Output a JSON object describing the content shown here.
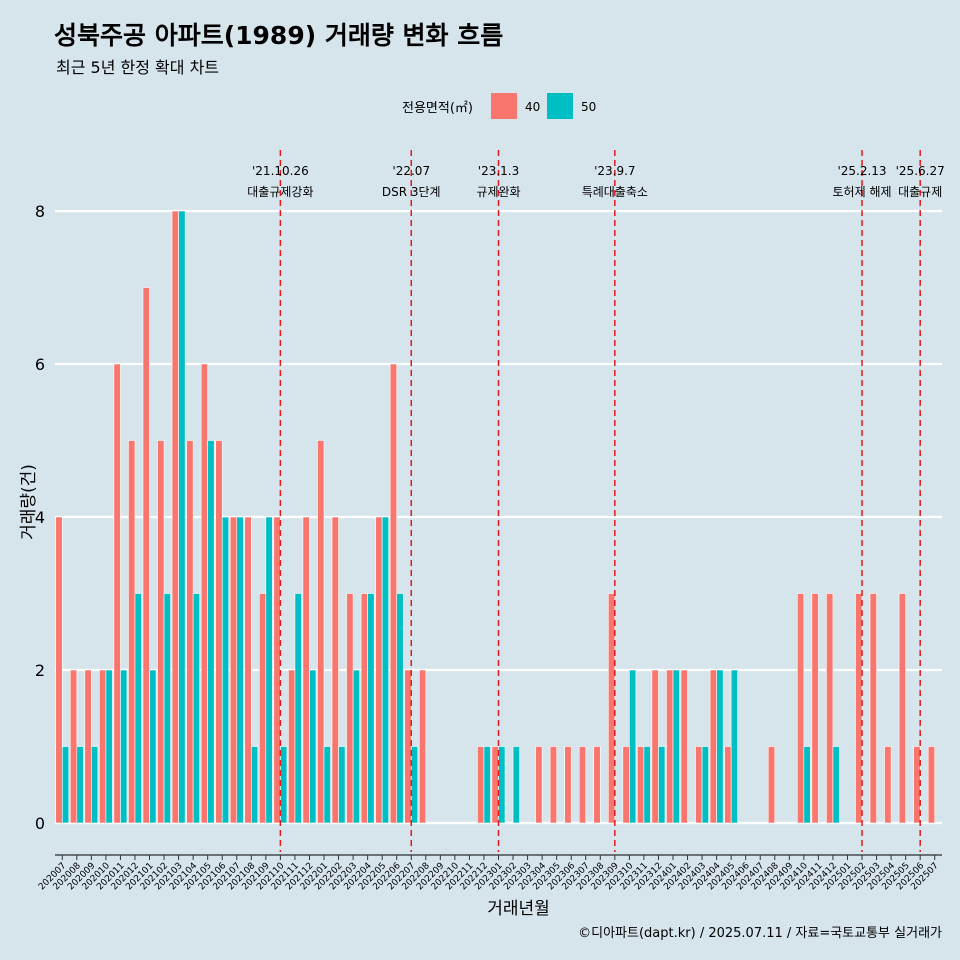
{
  "title": "성북주공 아파트(1989) 거래량 변화 흐름",
  "subtitle": "최근 5년 한정 확대 차트",
  "caption": "©디아파트(dapt.kr) / 2025.07.11 / 자료=국토교통부 실거래가",
  "colors": {
    "s40": "#f8766d",
    "s50": "#00bfc4",
    "vline": "#e31a1c",
    "background": "#d6e4ec",
    "grid": "#ffffff"
  },
  "chart_data": {
    "type": "bar",
    "title": "성북주공 아파트(1989) 거래량 변화 흐름",
    "subtitle": "최근 5년 한정 확대 차트",
    "xlabel": "거래년월",
    "ylabel": "거래량(건)",
    "ylim": [
      0,
      8
    ],
    "yticks": [
      0,
      2,
      4,
      6,
      8
    ],
    "legend": {
      "title": "전용면적(㎡)",
      "position": "top"
    },
    "categories": [
      "202007",
      "202008",
      "202009",
      "202010",
      "202011",
      "202012",
      "202101",
      "202102",
      "202103",
      "202104",
      "202105",
      "202106",
      "202107",
      "202108",
      "202109",
      "202110",
      "202111",
      "202112",
      "202201",
      "202202",
      "202203",
      "202204",
      "202205",
      "202206",
      "202207",
      "202208",
      "202209",
      "202210",
      "202211",
      "202212",
      "202301",
      "202302",
      "202303",
      "202304",
      "202305",
      "202306",
      "202307",
      "202308",
      "202309",
      "202310",
      "202311",
      "202312",
      "202401",
      "202402",
      "202403",
      "202404",
      "202405",
      "202406",
      "202407",
      "202408",
      "202409",
      "202410",
      "202411",
      "202412",
      "202501",
      "202502",
      "202503",
      "202504",
      "202505",
      "202506",
      "202507"
    ],
    "series": [
      {
        "name": "40",
        "values": [
          4,
          2,
          2,
          2,
          6,
          5,
          7,
          5,
          8,
          5,
          6,
          5,
          4,
          4,
          3,
          4,
          2,
          4,
          5,
          4,
          3,
          3,
          4,
          6,
          2,
          2,
          0,
          0,
          0,
          1,
          1,
          0,
          0,
          1,
          1,
          1,
          1,
          1,
          3,
          1,
          1,
          2,
          2,
          2,
          1,
          2,
          1,
          0,
          0,
          1,
          0,
          3,
          3,
          3,
          0,
          3,
          3,
          1,
          3,
          1,
          1
        ]
      },
      {
        "name": "50",
        "values": [
          1,
          1,
          1,
          2,
          2,
          3,
          2,
          3,
          8,
          3,
          5,
          4,
          4,
          1,
          4,
          1,
          3,
          2,
          1,
          1,
          2,
          3,
          4,
          3,
          1,
          0,
          0,
          0,
          0,
          1,
          1,
          1,
          0,
          0,
          0,
          0,
          0,
          0,
          0,
          2,
          1,
          1,
          2,
          0,
          1,
          2,
          2,
          0,
          0,
          0,
          0,
          1,
          0,
          1,
          0,
          0,
          0,
          0,
          0,
          0,
          0
        ]
      }
    ],
    "annotations": [
      {
        "x": "202110",
        "date": "'21.10.26",
        "label": "대출규제강화"
      },
      {
        "x": "202207",
        "date": "'22.07",
        "label": "DSR 3단계"
      },
      {
        "x": "202301",
        "date": "'23.1.3",
        "label": "규제완화"
      },
      {
        "x": "202309",
        "date": "'23.9.7",
        "label": "특례대출축소"
      },
      {
        "x": "202502",
        "date": "'25.2.13",
        "label": "토허제 해제"
      },
      {
        "x": "202506",
        "date": "'25.6.27",
        "label": "대출규제"
      }
    ]
  }
}
